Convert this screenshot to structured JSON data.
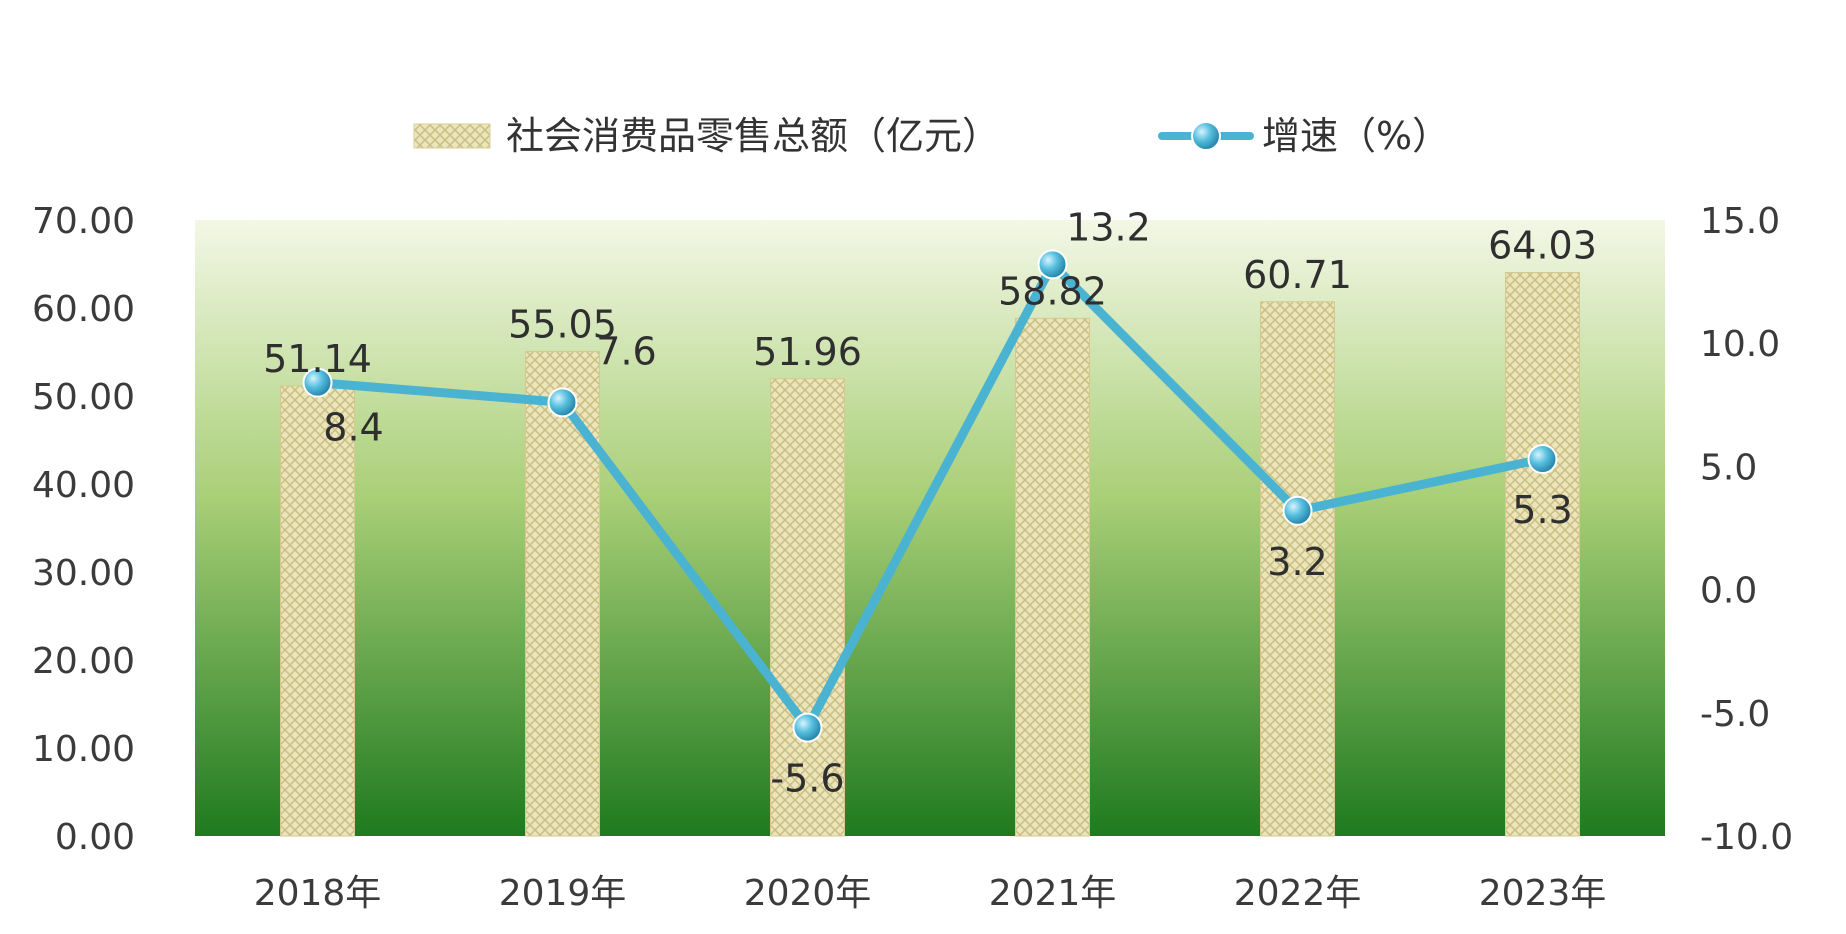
{
  "chart_data": {
    "type": "bar",
    "categories": [
      "2018年",
      "2019年",
      "2020年",
      "2021年",
      "2022年",
      "2023年"
    ],
    "series": [
      {
        "name": "社会消费品零售总额（亿元）",
        "type": "bar",
        "axis": "left",
        "values": [
          51.14,
          55.05,
          51.96,
          58.82,
          60.71,
          64.03
        ],
        "labels": [
          "51.14",
          "55.05",
          "51.96",
          "58.82",
          "60.71",
          "64.03"
        ]
      },
      {
        "name": "增速（%）",
        "type": "line",
        "axis": "right",
        "values": [
          8.4,
          7.6,
          -5.6,
          13.2,
          3.2,
          5.3
        ],
        "labels": [
          "8.4",
          "7.6",
          "-5.6",
          "13.2",
          "3.2",
          "5.3"
        ]
      }
    ],
    "y_left": {
      "range": [
        0,
        70
      ],
      "ticks": [
        "0.00",
        "10.00",
        "20.00",
        "30.00",
        "40.00",
        "50.00",
        "60.00",
        "70.00"
      ]
    },
    "y_right": {
      "range": [
        -10,
        15
      ],
      "ticks": [
        "-10.0",
        "-5.0",
        "0.0",
        "5.0",
        "10.0",
        "15.0"
      ]
    },
    "legend_position": "top",
    "grid": false,
    "colors": {
      "plot_top": "#f3f7e6",
      "plot_mid": "#8fbf5a",
      "plot_bottom": "#1f7a1f",
      "bar_fill": "#e8e0b0",
      "bar_pattern": "#c9bf85",
      "line": "#4ab3d1",
      "marker": "#3aa8cc"
    }
  }
}
